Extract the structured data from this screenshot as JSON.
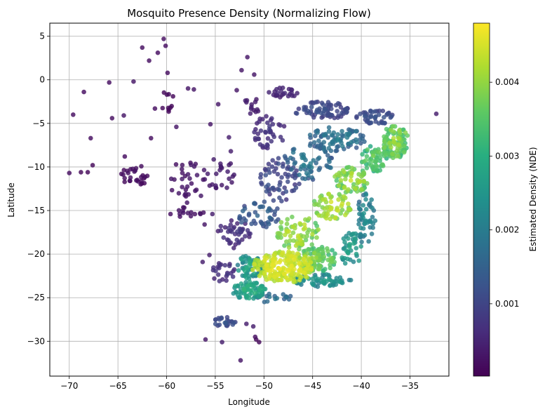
{
  "chart_data": {
    "type": "scatter",
    "title": "Mosquito Presence Density (Normalizing Flow)",
    "xlabel": "Longitude",
    "ylabel": "Latitude",
    "xlim": [
      -72,
      -31
    ],
    "ylim": [
      -34,
      6.5
    ],
    "xticks": [
      -70,
      -65,
      -60,
      -55,
      -50,
      -45,
      -40,
      -35
    ],
    "yticks": [
      5,
      0,
      -5,
      -10,
      -15,
      -20,
      -25,
      -30
    ],
    "grid": true,
    "colormap": "viridis",
    "colorbar": {
      "label": "Estimated Density (NDE)",
      "range": [
        2e-05,
        0.0048
      ],
      "ticks": [
        0.001,
        0.002,
        0.003,
        0.004
      ],
      "tick_labels": [
        "0.001",
        "0.002",
        "0.003",
        "0.004"
      ]
    },
    "outliers": [
      {
        "x": -70.0,
        "y": -10.7,
        "d": 0.0002
      },
      {
        "x": -69.6,
        "y": -4.0,
        "d": 0.0002
      },
      {
        "x": -68.8,
        "y": -10.6,
        "d": 0.0001
      },
      {
        "x": -68.5,
        "y": -1.4,
        "d": 0.0002
      },
      {
        "x": -68.1,
        "y": -10.6,
        "d": 0.0001
      },
      {
        "x": -67.8,
        "y": -6.7,
        "d": 0.0002
      },
      {
        "x": -67.6,
        "y": -9.8,
        "d": 0.0001
      },
      {
        "x": -65.9,
        "y": -0.3,
        "d": 0.0002
      },
      {
        "x": -65.6,
        "y": -4.4,
        "d": 0.0002
      },
      {
        "x": -64.4,
        "y": -4.1,
        "d": 0.0003
      },
      {
        "x": -64.3,
        "y": -8.8,
        "d": 0.0002
      },
      {
        "x": -63.4,
        "y": -0.2,
        "d": 0.0003
      },
      {
        "x": -62.5,
        "y": 3.7,
        "d": 0.0002
      },
      {
        "x": -61.8,
        "y": 2.2,
        "d": 0.0002
      },
      {
        "x": -60.9,
        "y": 3.1,
        "d": 0.0002
      },
      {
        "x": -60.3,
        "y": 4.7,
        "d": 0.0002
      },
      {
        "x": -60.1,
        "y": 3.9,
        "d": 0.0002
      },
      {
        "x": -61.6,
        "y": -6.7,
        "d": 0.0002
      },
      {
        "x": -61.2,
        "y": -3.3,
        "d": 0.0002
      },
      {
        "x": -59.9,
        "y": 0.8,
        "d": 0.0002
      },
      {
        "x": -59.0,
        "y": -5.4,
        "d": 0.0003
      },
      {
        "x": -57.8,
        "y": -1.0,
        "d": 0.0003
      },
      {
        "x": -57.2,
        "y": -1.1,
        "d": 0.0003
      },
      {
        "x": -55.5,
        "y": -5.1,
        "d": 0.0003
      },
      {
        "x": -54.7,
        "y": -2.8,
        "d": 0.0003
      },
      {
        "x": -53.6,
        "y": -6.6,
        "d": 0.0004
      },
      {
        "x": -53.4,
        "y": -8.2,
        "d": 0.0004
      },
      {
        "x": -52.8,
        "y": -1.2,
        "d": 0.0003
      },
      {
        "x": -52.3,
        "y": 1.1,
        "d": 0.0003
      },
      {
        "x": -51.7,
        "y": 2.6,
        "d": 0.0003
      },
      {
        "x": -51.0,
        "y": 0.6,
        "d": 0.0003
      },
      {
        "x": -50.6,
        "y": -3.6,
        "d": 0.0004
      },
      {
        "x": -32.3,
        "y": -3.9,
        "d": 0.0004
      },
      {
        "x": -55.6,
        "y": -20.1,
        "d": 0.0004
      },
      {
        "x": -56.3,
        "y": -20.9,
        "d": 0.0004
      },
      {
        "x": -55.1,
        "y": -22.8,
        "d": 0.0005
      },
      {
        "x": -56.0,
        "y": -29.8,
        "d": 0.0003
      },
      {
        "x": -54.3,
        "y": -30.1,
        "d": 0.0004
      },
      {
        "x": -52.4,
        "y": -32.2,
        "d": 0.0003
      },
      {
        "x": -51.8,
        "y": -28.0,
        "d": 0.0004
      },
      {
        "x": -51.1,
        "y": -28.3,
        "d": 0.0004
      },
      {
        "x": -50.8,
        "y": -29.8,
        "d": 0.0001
      },
      {
        "x": -50.5,
        "y": -30.1,
        "d": 0.0001
      },
      {
        "x": -50.9,
        "y": -29.5,
        "d": 0.0002
      },
      {
        "x": -55.3,
        "y": -15.4,
        "d": 0.0004
      },
      {
        "x": -57.9,
        "y": -14.1,
        "d": 0.0003
      },
      {
        "x": -58.4,
        "y": -12.3,
        "d": 0.0003
      },
      {
        "x": -59.6,
        "y": -15.4,
        "d": 0.0002
      },
      {
        "x": -56.1,
        "y": -16.6,
        "d": 0.0003
      },
      {
        "x": -53.1,
        "y": -19.3,
        "d": 0.0005
      }
    ],
    "clusters": [
      {
        "cx": -63.3,
        "cy": -11.0,
        "rx": 1.6,
        "ry": 1.3,
        "n": 28,
        "d": [
          0.0001,
          0.0003
        ]
      },
      {
        "cx": -60.0,
        "cy": -2.5,
        "rx": 0.8,
        "ry": 1.2,
        "n": 10,
        "d": [
          0.0001,
          0.0002
        ]
      },
      {
        "cx": -57.5,
        "cy": -11.5,
        "rx": 2.5,
        "ry": 2.3,
        "n": 30,
        "d": [
          0.0002,
          0.0004
        ]
      },
      {
        "cx": -57.8,
        "cy": -15.2,
        "rx": 1.8,
        "ry": 0.6,
        "n": 14,
        "d": [
          0.0002,
          0.0003
        ]
      },
      {
        "cx": -54.5,
        "cy": -10.8,
        "rx": 1.6,
        "ry": 2.0,
        "n": 22,
        "d": [
          0.0003,
          0.0005
        ]
      },
      {
        "cx": -53.0,
        "cy": -17.5,
        "rx": 1.8,
        "ry": 1.5,
        "n": 38,
        "d": [
          0.0004,
          0.0009
        ]
      },
      {
        "cx": -54.2,
        "cy": -22.0,
        "rx": 1.2,
        "ry": 1.2,
        "n": 22,
        "d": [
          0.0005,
          0.0009
        ]
      },
      {
        "cx": -54.0,
        "cy": -27.8,
        "rx": 1.2,
        "ry": 0.6,
        "n": 24,
        "d": [
          0.0009,
          0.0014
        ]
      },
      {
        "cx": -48.0,
        "cy": -1.5,
        "rx": 1.5,
        "ry": 0.6,
        "n": 24,
        "d": [
          0.0004,
          0.0006
        ]
      },
      {
        "cx": -51.5,
        "cy": -3.0,
        "rx": 1.0,
        "ry": 1.2,
        "n": 12,
        "d": [
          0.0003,
          0.0005
        ]
      },
      {
        "cx": -49.5,
        "cy": -6.0,
        "rx": 1.8,
        "ry": 2.0,
        "n": 40,
        "d": [
          0.0005,
          0.0009
        ]
      },
      {
        "cx": -48.5,
        "cy": -11.5,
        "rx": 2.2,
        "ry": 2.5,
        "n": 60,
        "d": [
          0.0007,
          0.0014
        ]
      },
      {
        "cx": -50.5,
        "cy": -15.5,
        "rx": 2.2,
        "ry": 1.6,
        "n": 45,
        "d": [
          0.001,
          0.0018
        ]
      },
      {
        "cx": -44.0,
        "cy": -3.5,
        "rx": 3.0,
        "ry": 1.0,
        "n": 70,
        "d": [
          0.0008,
          0.0013
        ]
      },
      {
        "cx": -38.5,
        "cy": -4.3,
        "rx": 2.0,
        "ry": 0.8,
        "n": 45,
        "d": [
          0.0009,
          0.0014
        ]
      },
      {
        "cx": -42.5,
        "cy": -6.8,
        "rx": 3.0,
        "ry": 1.4,
        "n": 80,
        "d": [
          0.0013,
          0.0022
        ]
      },
      {
        "cx": -36.5,
        "cy": -7.0,
        "rx": 1.3,
        "ry": 2.0,
        "n": 100,
        "d": [
          0.003,
          0.0044
        ]
      },
      {
        "cx": -38.5,
        "cy": -9.0,
        "rx": 1.5,
        "ry": 1.5,
        "n": 60,
        "d": [
          0.0028,
          0.004
        ]
      },
      {
        "cx": -45.5,
        "cy": -9.5,
        "rx": 2.6,
        "ry": 2.0,
        "n": 60,
        "d": [
          0.0012,
          0.0022
        ]
      },
      {
        "cx": -41.0,
        "cy": -11.5,
        "rx": 1.8,
        "ry": 1.5,
        "n": 70,
        "d": [
          0.0032,
          0.0046
        ]
      },
      {
        "cx": -43.0,
        "cy": -14.5,
        "rx": 2.0,
        "ry": 1.5,
        "n": 60,
        "d": [
          0.0036,
          0.0047
        ]
      },
      {
        "cx": -39.5,
        "cy": -16.0,
        "rx": 1.0,
        "ry": 3.0,
        "n": 50,
        "d": [
          0.0016,
          0.0026
        ]
      },
      {
        "cx": -46.5,
        "cy": -17.5,
        "rx": 2.2,
        "ry": 2.0,
        "n": 70,
        "d": [
          0.0034,
          0.0046
        ]
      },
      {
        "cx": -41.0,
        "cy": -19.5,
        "rx": 1.2,
        "ry": 2.0,
        "n": 40,
        "d": [
          0.002,
          0.003
        ]
      },
      {
        "cx": -48.0,
        "cy": -21.5,
        "rx": 3.2,
        "ry": 1.8,
        "n": 200,
        "d": [
          0.004,
          0.0048
        ]
      },
      {
        "cx": -44.5,
        "cy": -20.5,
        "rx": 2.0,
        "ry": 1.5,
        "n": 90,
        "d": [
          0.003,
          0.0042
        ]
      },
      {
        "cx": -51.5,
        "cy": -21.5,
        "rx": 1.4,
        "ry": 1.4,
        "n": 60,
        "d": [
          0.0018,
          0.0032
        ]
      },
      {
        "cx": -51.5,
        "cy": -24.2,
        "rx": 1.8,
        "ry": 1.0,
        "n": 70,
        "d": [
          0.0022,
          0.0034
        ]
      },
      {
        "cx": -44.0,
        "cy": -23.0,
        "rx": 3.0,
        "ry": 0.8,
        "n": 60,
        "d": [
          0.0018,
          0.0028
        ]
      },
      {
        "cx": -49.0,
        "cy": -25.0,
        "rx": 2.0,
        "ry": 0.6,
        "n": 20,
        "d": [
          0.0012,
          0.002
        ]
      }
    ]
  }
}
